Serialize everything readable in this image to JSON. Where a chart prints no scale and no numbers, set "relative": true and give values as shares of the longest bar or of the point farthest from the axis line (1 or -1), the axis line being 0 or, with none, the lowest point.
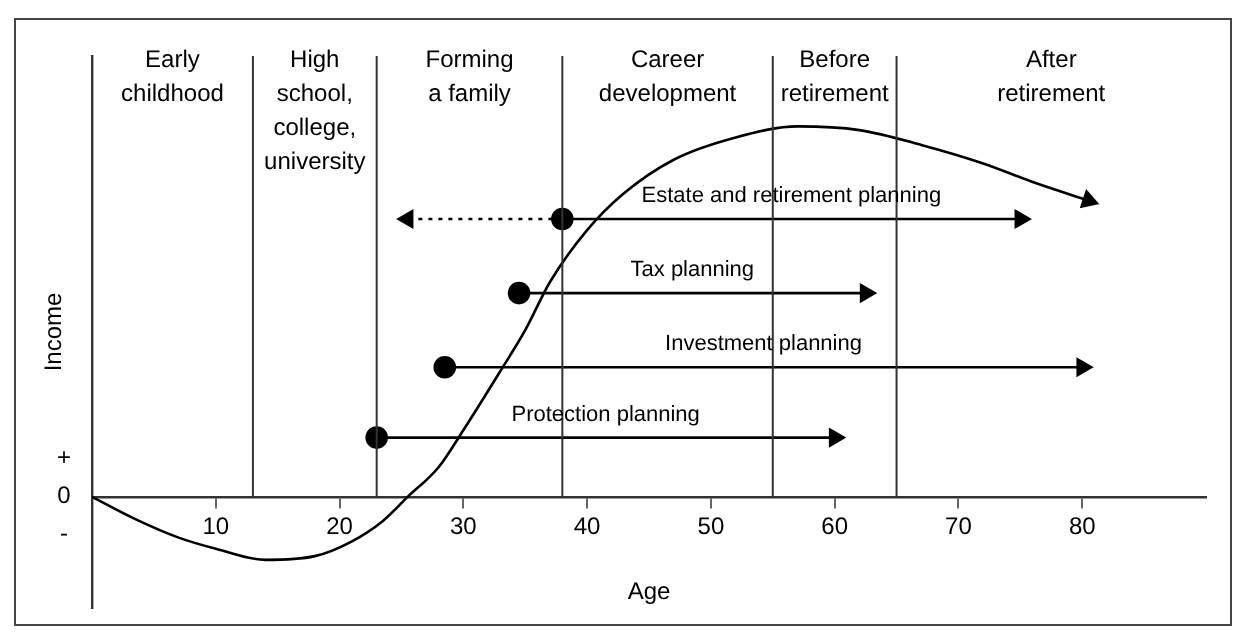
{
  "chart_data": {
    "type": "line",
    "relative": true,
    "xlabel": "Age",
    "ylabel": "Income",
    "xlim": [
      0,
      90
    ],
    "xticks": [
      10,
      20,
      30,
      40,
      50,
      60,
      70,
      80
    ],
    "legend": false,
    "grid": false,
    "ref_lines": [
      {
        "axis": "x",
        "value": 13
      },
      {
        "axis": "x",
        "value": 23
      },
      {
        "axis": "x",
        "value": 38
      },
      {
        "axis": "x",
        "value": 55
      },
      {
        "axis": "x",
        "value": 65
      }
    ],
    "annotations": [
      "Early childhood",
      "High school, college, university",
      "Forming a family",
      "Career development",
      "Before retirement",
      "After retirement",
      "+",
      "0",
      "-"
    ],
    "series": [
      {
        "color": "#000000",
        "x": [
          0,
          3.5,
          7,
          10,
          14,
          18,
          21,
          23.5,
          25.5,
          28,
          30,
          33,
          35,
          37,
          40,
          43,
          47,
          52,
          57,
          62,
          67,
          72,
          76,
          80.5
        ],
        "values": [
          0,
          -0.06,
          -0.11,
          -0.14,
          -0.17,
          -0.16,
          -0.12,
          -0.065,
          0,
          0.08,
          0.18,
          0.34,
          0.45,
          0.58,
          0.72,
          0.82,
          0.91,
          0.97,
          1,
          0.99,
          0.95,
          0.9,
          0.85,
          0.8
        ]
      },
      {
        "name": "Estate and retirement planning",
        "color": "#000000",
        "marker": "circle",
        "x": [
          38,
          75
        ],
        "values": [
          0.75,
          0.75
        ]
      },
      {
        "color": "#000000",
        "line_style": "dotted",
        "x": [
          38,
          25.5
        ],
        "values": [
          0.75,
          0.75
        ]
      },
      {
        "name": "Tax planning",
        "color": "#000000",
        "marker": "circle",
        "x": [
          34.5,
          62.5
        ],
        "values": [
          0.55,
          0.55
        ]
      },
      {
        "name": "Investment planning",
        "color": "#000000",
        "marker": "circle",
        "x": [
          28.5,
          80
        ],
        "values": [
          0.35,
          0.35
        ]
      },
      {
        "name": "Protection planning",
        "color": "#000000",
        "marker": "circle",
        "x": [
          23,
          60
        ],
        "values": [
          0.16,
          0.16
        ]
      }
    ]
  }
}
